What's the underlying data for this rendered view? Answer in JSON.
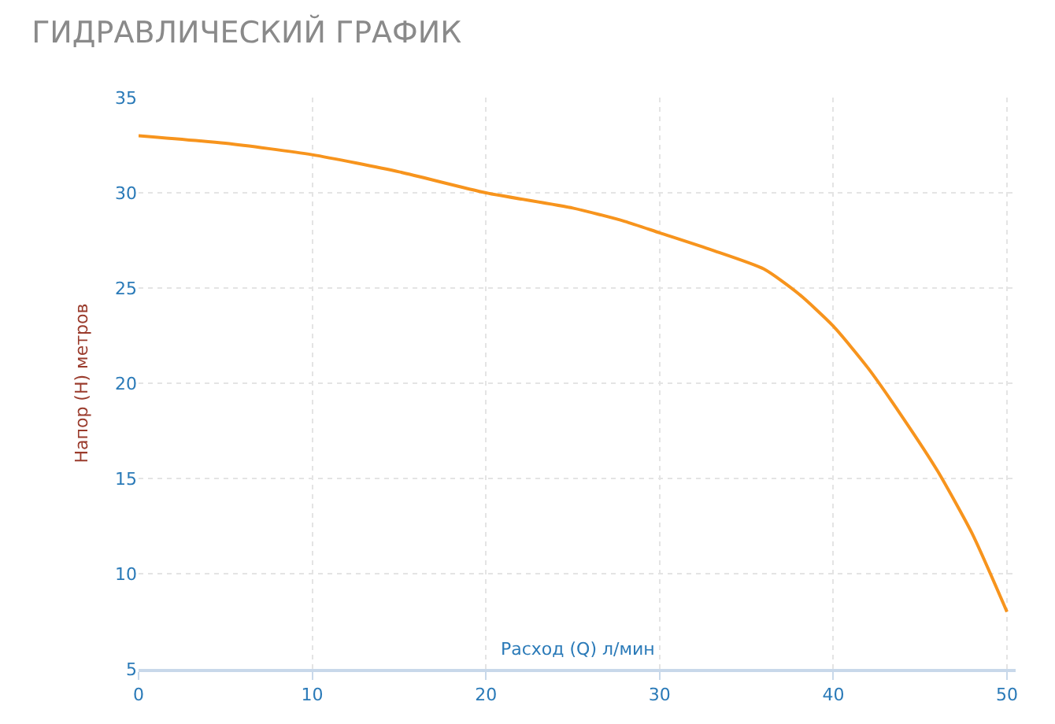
{
  "chart_data": {
    "type": "line",
    "title": "ГИДРАВЛИЧЕСКИЙ ГРАФИК",
    "xlabel": "Расход (Q) л/мин",
    "ylabel": "Напор (H) метров",
    "x": [
      0,
      5,
      10,
      15,
      20,
      25,
      28,
      30,
      33,
      36,
      38,
      40,
      42,
      44,
      46,
      48,
      50
    ],
    "series": [
      {
        "color": "#f7941d",
        "values": [
          33,
          32.6,
          32,
          31.1,
          30,
          29.2,
          28.5,
          27.9,
          27,
          26,
          24.7,
          23,
          20.8,
          18.2,
          15.4,
          12.1,
          8
        ]
      }
    ],
    "xlim": [
      0,
      50.5
    ],
    "xticks": [
      0,
      10,
      20,
      30,
      40,
      50
    ],
    "ylim": [
      5,
      35
    ],
    "yticks": [
      5,
      10,
      15,
      20,
      25,
      30,
      35
    ],
    "grid": true,
    "legend": false,
    "marker": "none",
    "line_style": "solid"
  }
}
